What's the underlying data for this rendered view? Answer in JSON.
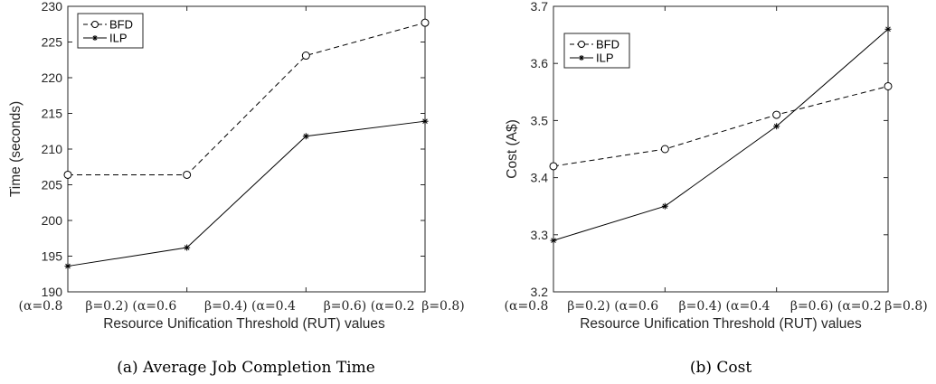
{
  "chart_data": [
    {
      "type": "line",
      "caption": "(a) Average Job Completion Time",
      "xlabel": "Resource Unification Threshold (RUT) values",
      "ylabel": "Time (seconds)",
      "ylim": [
        190,
        230
      ],
      "yticks": [
        190,
        195,
        200,
        205,
        210,
        215,
        220,
        225,
        230
      ],
      "categories": [
        "(α=0.8   β=0.2)",
        "(α=0.6   β=0.4)",
        "(α=0.4   β=0.6)",
        "(α=0.2   β=0.8)"
      ],
      "category_labels": [
        "(α=0.8",
        "β=0.2) (α=0.6",
        "β=0.4) (α=0.4",
        "β=0.6) (α=0.2",
        "β=0.8)"
      ],
      "legend_position": "top-left",
      "grid": false,
      "series": [
        {
          "name": "BFD",
          "style": "dashed",
          "marker": "circle",
          "values": [
            206.4,
            206.4,
            223.1,
            227.7
          ]
        },
        {
          "name": "ILP",
          "style": "solid",
          "marker": "star",
          "values": [
            193.6,
            196.2,
            211.8,
            213.9
          ]
        }
      ]
    },
    {
      "type": "line",
      "caption": "(b) Cost",
      "xlabel": "Resource Unification Threshold (RUT) values",
      "ylabel": "Cost (A$)",
      "ylim": [
        3.2,
        3.7
      ],
      "yticks": [
        3.2,
        3.3,
        3.4,
        3.5,
        3.6,
        3.7
      ],
      "categories": [
        "(α=0.8   β=0.2)",
        "(α=0.6   β=0.4)",
        "(α=0.4   β=0.6)",
        "(α=0.2   β=0.8)"
      ],
      "category_labels": [
        "(α=0.8",
        "β=0.2) (α=0.6",
        "β=0.4) (α=0.4",
        "β=0.6) (α=0.2",
        "β=0.8)"
      ],
      "legend_position": "top-left",
      "grid": false,
      "series": [
        {
          "name": "BFD",
          "style": "dashed",
          "marker": "circle",
          "values": [
            3.42,
            3.45,
            3.51,
            3.56
          ]
        },
        {
          "name": "ILP",
          "style": "solid",
          "marker": "star",
          "values": [
            3.29,
            3.35,
            3.49,
            3.66
          ]
        }
      ]
    }
  ]
}
